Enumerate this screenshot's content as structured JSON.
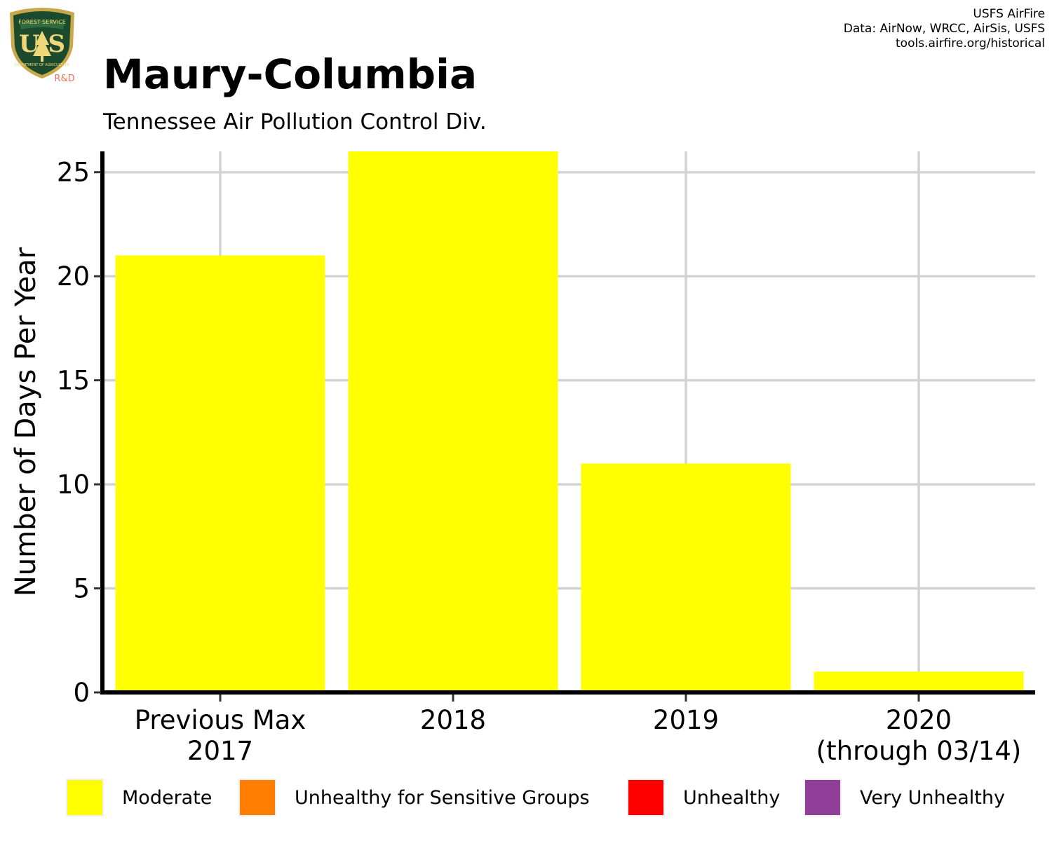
{
  "header": {
    "title": "Maury-Columbia",
    "subtitle": "Tennessee Air Pollution Control Div.",
    "credits": [
      "USFS AirFire",
      "Data: AirNow, WRCC, AirSis, USFS",
      "tools.airfire.org/historical"
    ]
  },
  "logo": {
    "icon": "usfs-shield-icon",
    "text_top": "FOREST SERVICE",
    "text_letters": "U S",
    "text_bottom": "DEPARTMENT OF AGRICULTURE",
    "badge": "R&D"
  },
  "chart_data": {
    "type": "bar",
    "categories": [
      [
        "Previous Max",
        "2017"
      ],
      [
        "2018"
      ],
      [
        "2019"
      ],
      [
        "2020",
        "(through 03/14)"
      ]
    ],
    "series": [
      {
        "name": "Moderate",
        "color": "#ffff00",
        "values": [
          21,
          26,
          11,
          1
        ]
      }
    ],
    "xlabel": "",
    "ylabel": "Number of Days Per Year",
    "ylim": [
      0,
      26
    ],
    "yticks": [
      0,
      5,
      10,
      15,
      20,
      25
    ],
    "grid": true,
    "legend_position": "bottom"
  },
  "legend": [
    {
      "label": "Moderate",
      "color": "#ffff00"
    },
    {
      "label": "Unhealthy for Sensitive Groups",
      "color": "#ff7e00"
    },
    {
      "label": "Unhealthy",
      "color": "#ff0000"
    },
    {
      "label": "Very Unhealthy",
      "color": "#8f3f97"
    }
  ]
}
